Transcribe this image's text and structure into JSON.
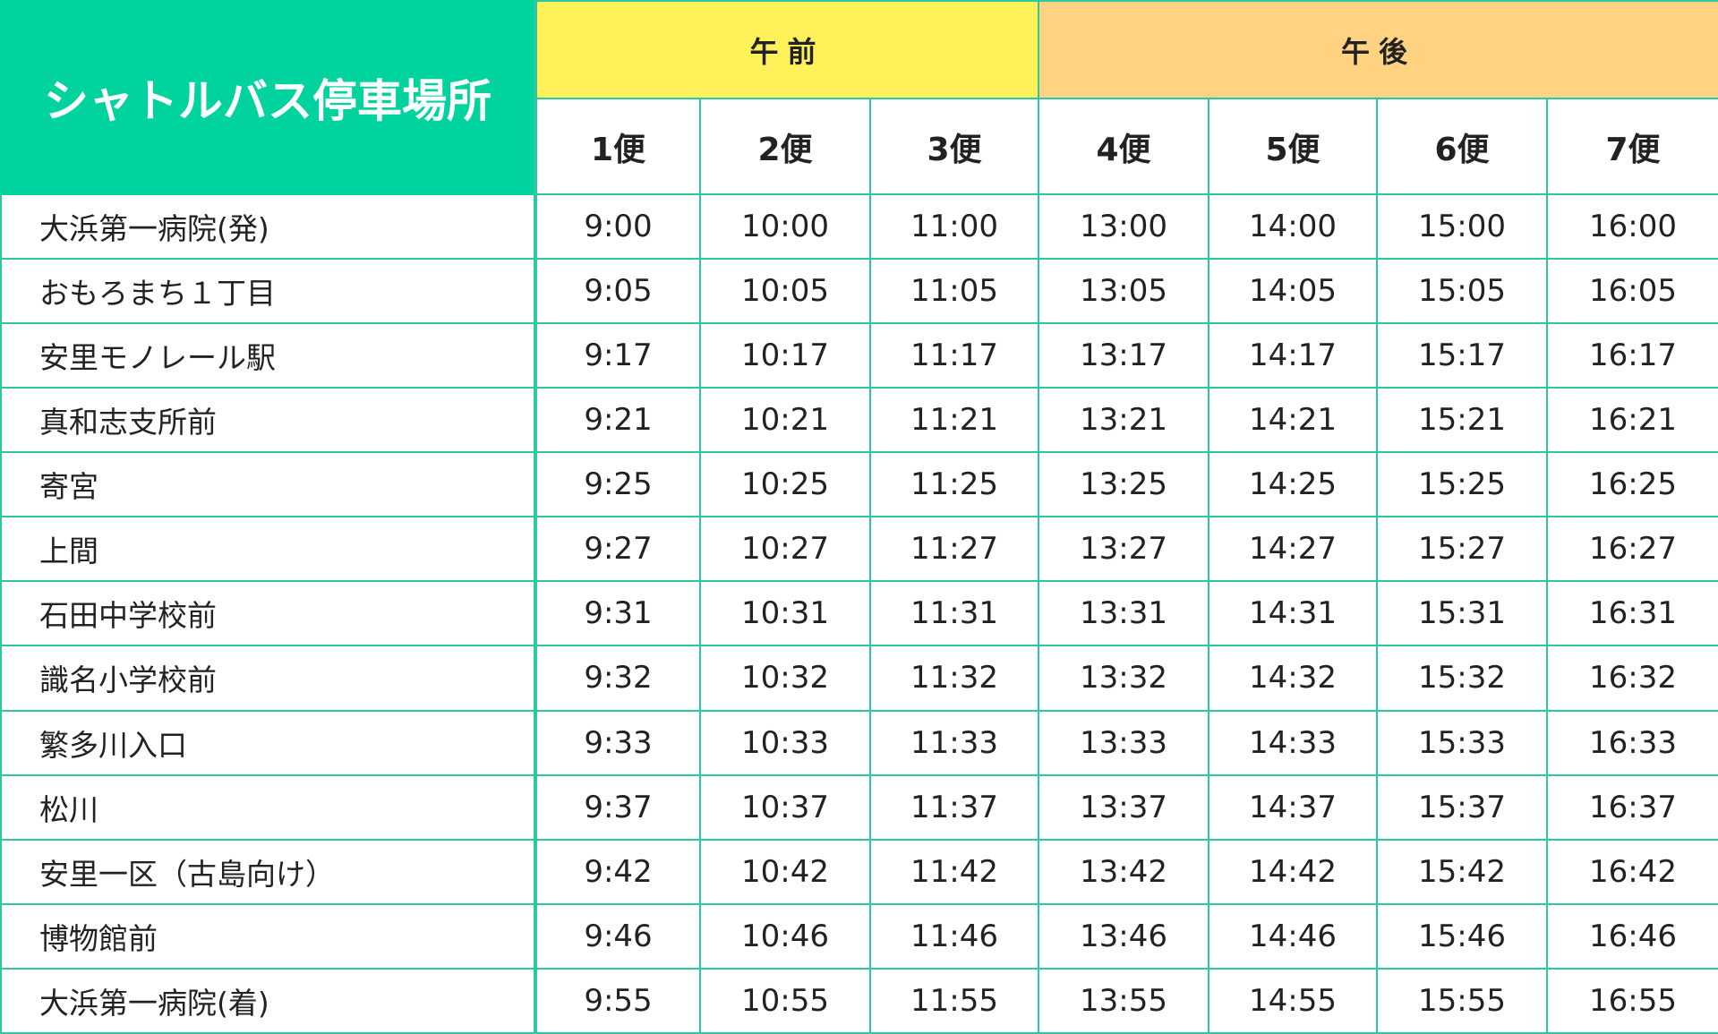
{
  "header": {
    "title": "シャトルバス停車場所",
    "am_label": "午前",
    "pm_label": "午後",
    "trips": [
      "1便",
      "2便",
      "3便",
      "4便",
      "5便",
      "6便",
      "7便"
    ]
  },
  "colors": {
    "title_bg": "#00d39e",
    "am_bg": "#fff15a",
    "pm_bg": "#ffd382",
    "border": "#2cc9a0"
  },
  "rows": [
    {
      "stop": "大浜第一病院(発)",
      "times": [
        "9:00",
        "10:00",
        "11:00",
        "13:00",
        "14:00",
        "15:00",
        "16:00"
      ]
    },
    {
      "stop": "おもろまち１丁目",
      "times": [
        "9:05",
        "10:05",
        "11:05",
        "13:05",
        "14:05",
        "15:05",
        "16:05"
      ]
    },
    {
      "stop": "安里モノレール駅",
      "times": [
        "9:17",
        "10:17",
        "11:17",
        "13:17",
        "14:17",
        "15:17",
        "16:17"
      ]
    },
    {
      "stop": "真和志支所前",
      "times": [
        "9:21",
        "10:21",
        "11:21",
        "13:21",
        "14:21",
        "15:21",
        "16:21"
      ]
    },
    {
      "stop": "寄宮",
      "times": [
        "9:25",
        "10:25",
        "11:25",
        "13:25",
        "14:25",
        "15:25",
        "16:25"
      ]
    },
    {
      "stop": "上間",
      "times": [
        "9:27",
        "10:27",
        "11:27",
        "13:27",
        "14:27",
        "15:27",
        "16:27"
      ]
    },
    {
      "stop": "石田中学校前",
      "times": [
        "9:31",
        "10:31",
        "11:31",
        "13:31",
        "14:31",
        "15:31",
        "16:31"
      ]
    },
    {
      "stop": "識名小学校前",
      "times": [
        "9:32",
        "10:32",
        "11:32",
        "13:32",
        "14:32",
        "15:32",
        "16:32"
      ]
    },
    {
      "stop": "繁多川入口",
      "times": [
        "9:33",
        "10:33",
        "11:33",
        "13:33",
        "14:33",
        "15:33",
        "16:33"
      ]
    },
    {
      "stop": "松川",
      "times": [
        "9:37",
        "10:37",
        "11:37",
        "13:37",
        "14:37",
        "15:37",
        "16:37"
      ]
    },
    {
      "stop": "安里一区（古島向け）",
      "times": [
        "9:42",
        "10:42",
        "11:42",
        "13:42",
        "14:42",
        "15:42",
        "16:42"
      ]
    },
    {
      "stop": "博物館前",
      "times": [
        "9:46",
        "10:46",
        "11:46",
        "13:46",
        "14:46",
        "15:46",
        "16:46"
      ]
    },
    {
      "stop": "大浜第一病院(着)",
      "times": [
        "9:55",
        "10:55",
        "11:55",
        "13:55",
        "14:55",
        "15:55",
        "16:55"
      ]
    }
  ]
}
